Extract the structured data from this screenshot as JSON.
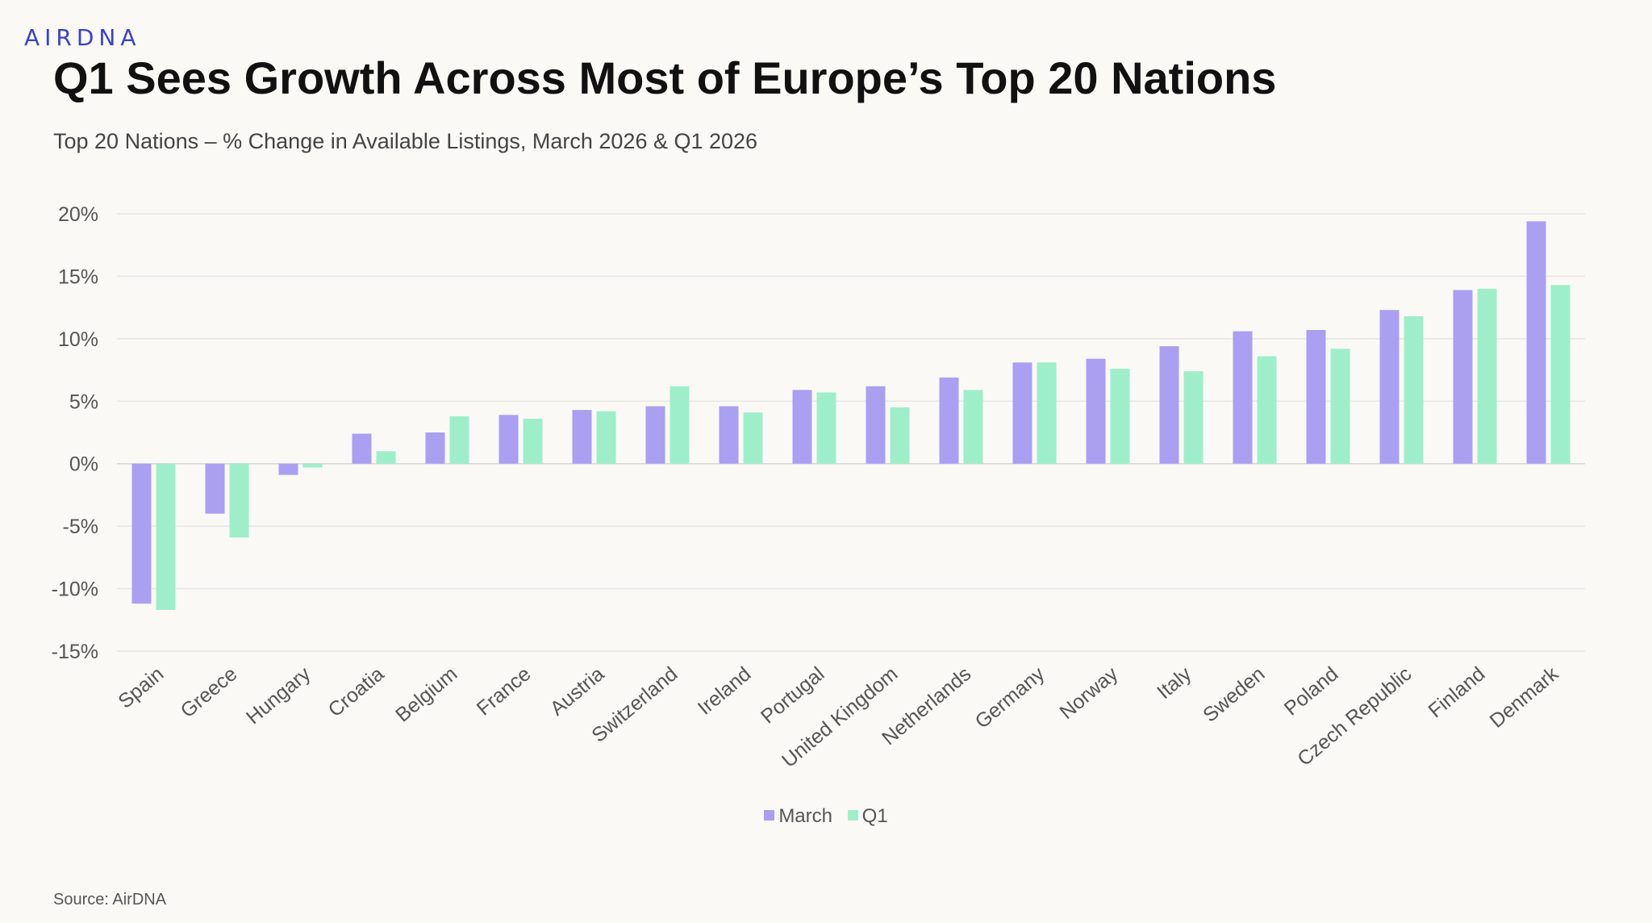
{
  "brand": {
    "logo_text": "AIRDNA",
    "logo_color": "#3a3fd0"
  },
  "header": {
    "title": "Q1 Sees Growth Across Most of Europe’s Top 20 Nations",
    "subtitle": "Top 20 Nations – % Change in Available Listings, March 2026 & Q1 2026"
  },
  "footer": {
    "source": "Source: AirDNA"
  },
  "chart_data": {
    "type": "bar",
    "title": "Top 20 Nations – % Change in Available Listings, March 2026 & Q1 2026",
    "xlabel": "",
    "ylabel": "",
    "ylim": [
      -15,
      20
    ],
    "yticks": [
      20,
      15,
      10,
      5,
      0,
      -5,
      -10,
      -15
    ],
    "ytick_labels": [
      "20%",
      "15%",
      "10%",
      "5%",
      "0%",
      "-5%",
      "-10%",
      "-15%"
    ],
    "grid": true,
    "legend_position": "bottom-center",
    "categories": [
      "Spain",
      "Greece",
      "Hungary",
      "Croatia",
      "Belgium",
      "France",
      "Austria",
      "Switzerland",
      "Ireland",
      "Portugal",
      "United Kingdom",
      "Netherlands",
      "Germany",
      "Norway",
      "Italy",
      "Sweden",
      "Poland",
      "Czech Republic",
      "Finland",
      "Denmark"
    ],
    "series": [
      {
        "name": "March",
        "color": "#ab9ff2",
        "values": [
          -11.2,
          -4.0,
          -0.9,
          2.4,
          2.5,
          3.9,
          4.3,
          4.6,
          4.6,
          5.9,
          6.2,
          6.9,
          8.1,
          8.4,
          9.4,
          10.6,
          10.7,
          12.3,
          13.9,
          19.4
        ]
      },
      {
        "name": "Q1",
        "color": "#9eefc9",
        "values": [
          -11.7,
          -5.9,
          -0.3,
          1.0,
          3.8,
          3.6,
          4.2,
          6.2,
          4.1,
          5.7,
          4.5,
          5.9,
          8.1,
          7.6,
          7.4,
          8.6,
          9.2,
          11.8,
          14.0,
          14.3
        ]
      }
    ]
  }
}
